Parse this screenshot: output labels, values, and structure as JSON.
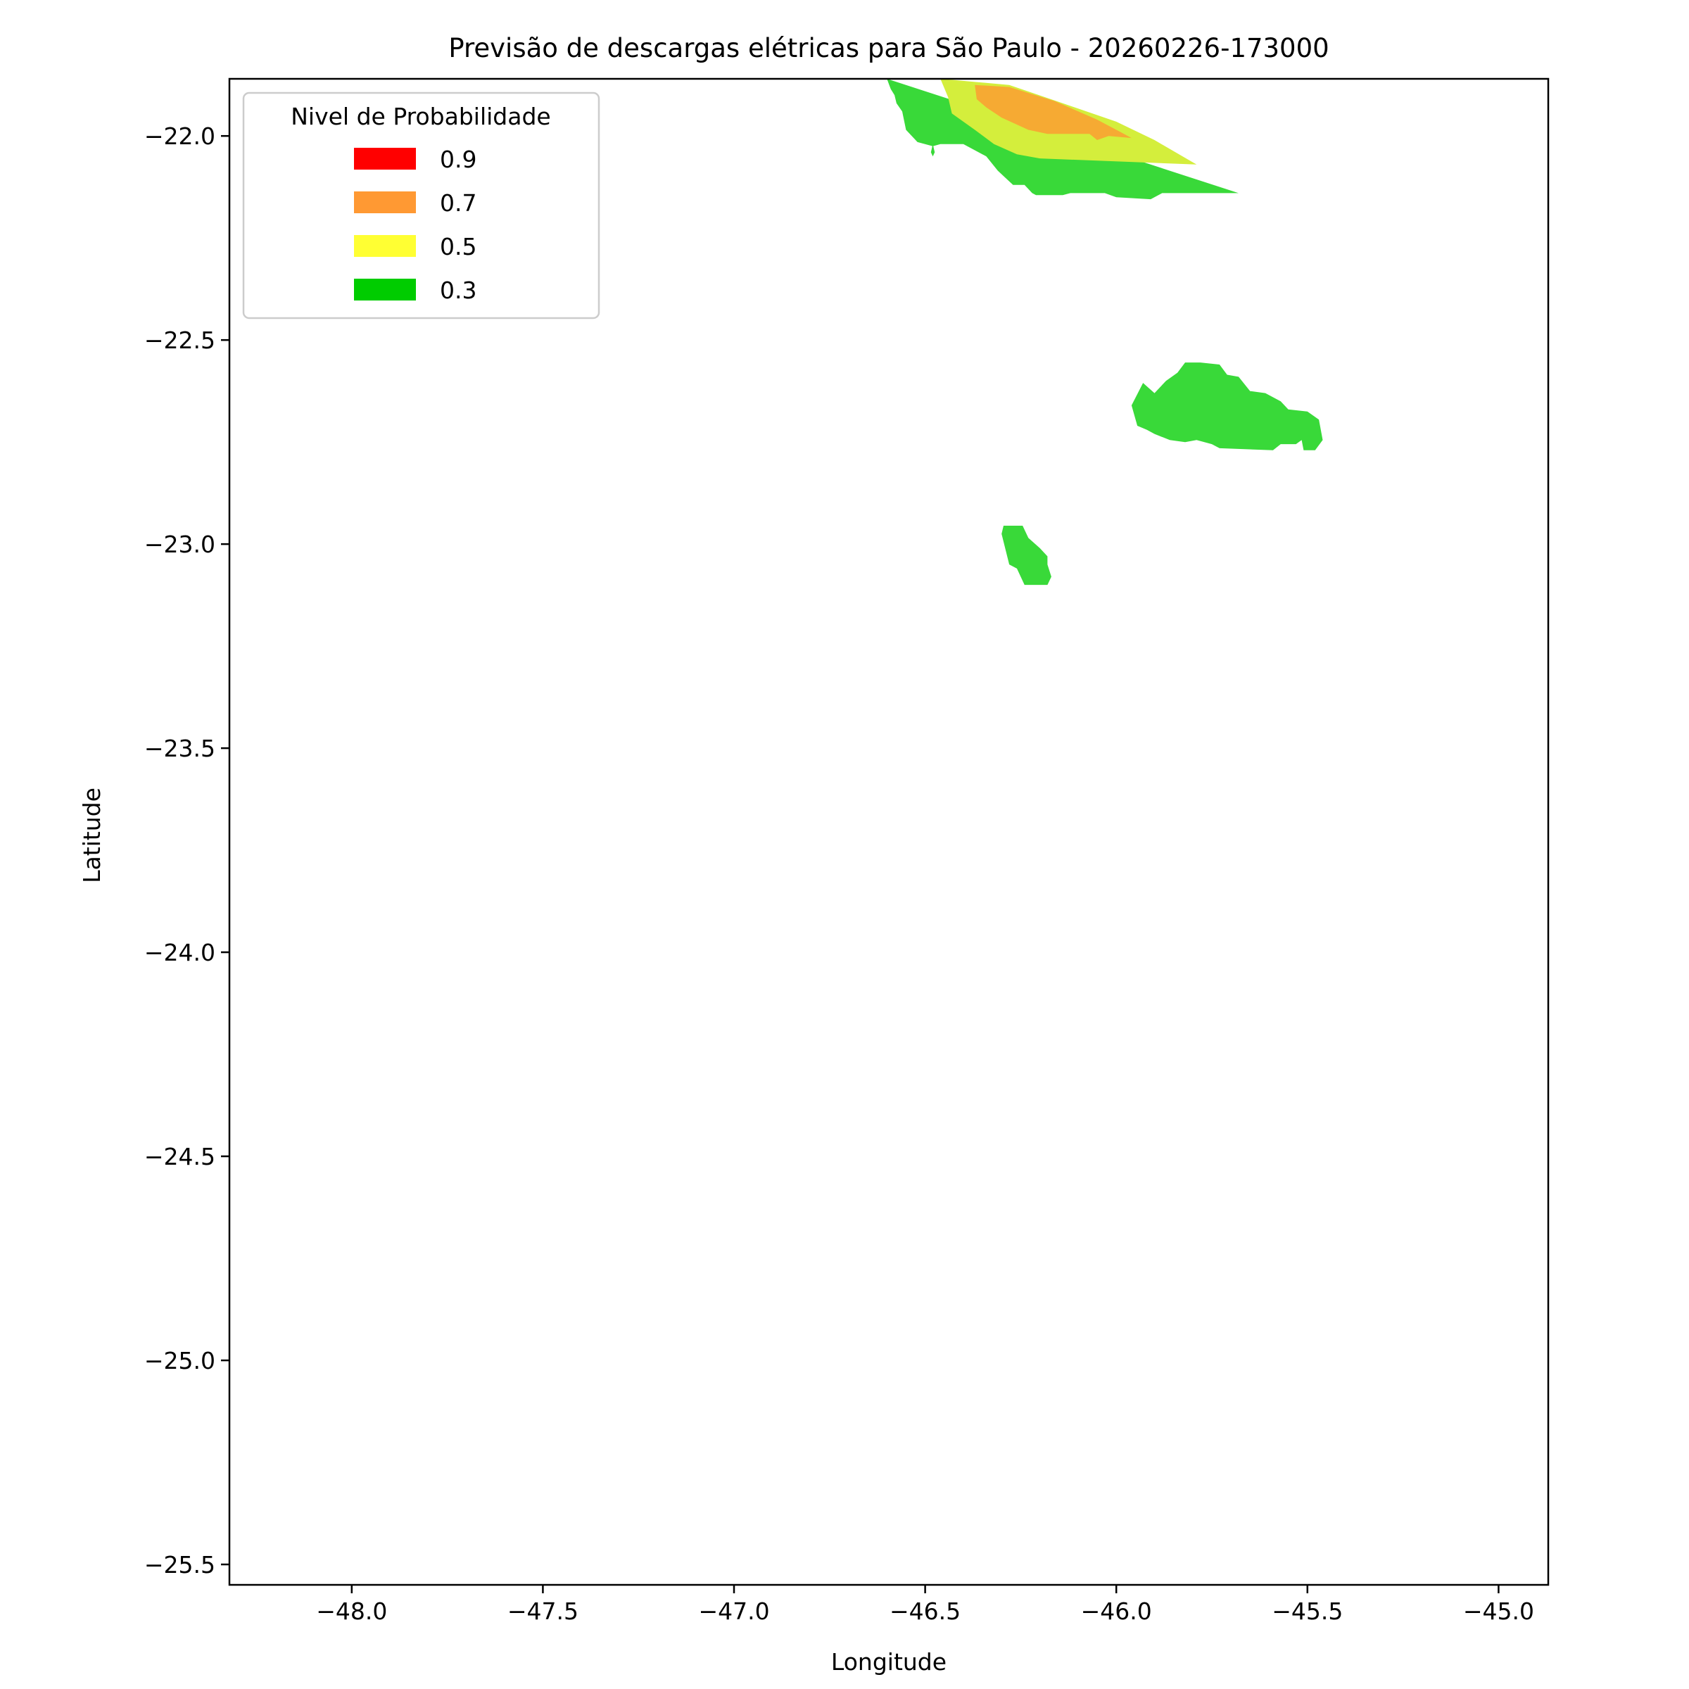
{
  "title": "Previsão de descargas elétricas para São Paulo - 20260226-173000",
  "chart_data": {
    "type": "map",
    "xlabel": "Longitude",
    "ylabel": "Latitude",
    "xlim": [
      -48.32,
      -44.87
    ],
    "ylim": [
      -25.55,
      -21.86
    ],
    "xticks": [
      -48.0,
      -47.5,
      -47.0,
      -46.5,
      -46.0,
      -45.5,
      -45.0
    ],
    "xtick_labels": [
      "−48.0",
      "−47.5",
      "−47.0",
      "−46.5",
      "−46.0",
      "−45.5",
      "−45.0"
    ],
    "yticks": [
      -22.0,
      -22.5,
      -23.0,
      -23.5,
      -24.0,
      -24.5,
      -25.0,
      -25.5
    ],
    "ytick_labels": [
      "−22.0",
      "−22.5",
      "−23.0",
      "−23.5",
      "−24.0",
      "−24.5",
      "−25.0",
      "−25.5"
    ],
    "legend": {
      "title": "Nivel de Probabilidade",
      "location": "upper-left",
      "entries": [
        {
          "label": "0.9",
          "color": "#ff0000"
        },
        {
          "label": "0.7",
          "color": "#ff9933"
        },
        {
          "label": "0.5",
          "color": "#ffff33"
        },
        {
          "label": "0.3",
          "color": "#00cc00"
        }
      ]
    },
    "regions": [
      {
        "level": "0.3",
        "color": "#39d939",
        "polygon": [
          [
            -46.6,
            -21.86
          ],
          [
            -45.68,
            -22.14
          ],
          [
            -45.88,
            -22.14
          ],
          [
            -45.91,
            -22.155
          ],
          [
            -46.0,
            -22.15
          ],
          [
            -46.03,
            -22.14
          ],
          [
            -46.12,
            -22.14
          ],
          [
            -46.14,
            -22.145
          ],
          [
            -46.21,
            -22.145
          ],
          [
            -46.22,
            -22.14
          ],
          [
            -46.24,
            -22.12
          ],
          [
            -46.27,
            -22.12
          ],
          [
            -46.31,
            -22.085
          ],
          [
            -46.34,
            -22.05
          ],
          [
            -46.37,
            -22.035
          ],
          [
            -46.4,
            -22.02
          ],
          [
            -46.46,
            -22.02
          ],
          [
            -46.48,
            -22.025
          ],
          [
            -46.52,
            -22.015
          ],
          [
            -46.55,
            -21.985
          ],
          [
            -46.56,
            -21.94
          ],
          [
            -46.575,
            -21.92
          ],
          [
            -46.58,
            -21.9
          ],
          [
            -46.59,
            -21.885
          ]
        ]
      },
      {
        "level": "0.3",
        "color": "#39d939",
        "polygon": [
          [
            -46.475,
            -22.04
          ],
          [
            -46.48,
            -22.02
          ],
          [
            -46.485,
            -22.04
          ],
          [
            -46.48,
            -22.05
          ]
        ]
      },
      {
        "level": "0.5",
        "color": "#d4ee3c",
        "polygon": [
          [
            -46.46,
            -21.86
          ],
          [
            -46.28,
            -21.875
          ],
          [
            -46.14,
            -21.92
          ],
          [
            -46.0,
            -21.965
          ],
          [
            -45.9,
            -22.01
          ],
          [
            -45.79,
            -22.07
          ],
          [
            -46.2,
            -22.055
          ],
          [
            -46.26,
            -22.045
          ],
          [
            -46.32,
            -22.02
          ],
          [
            -46.37,
            -21.985
          ],
          [
            -46.43,
            -21.945
          ],
          [
            -46.44,
            -21.905
          ]
        ]
      },
      {
        "level": "0.7",
        "color": "#f6aa33",
        "polygon": [
          [
            -46.37,
            -21.875
          ],
          [
            -46.28,
            -21.88
          ],
          [
            -46.16,
            -21.915
          ],
          [
            -46.05,
            -21.96
          ],
          [
            -45.98,
            -21.995
          ],
          [
            -45.96,
            -22.005
          ],
          [
            -46.02,
            -22.0
          ],
          [
            -46.05,
            -22.01
          ],
          [
            -46.07,
            -21.995
          ],
          [
            -46.18,
            -21.995
          ],
          [
            -46.23,
            -21.985
          ],
          [
            -46.3,
            -21.955
          ],
          [
            -46.34,
            -21.93
          ],
          [
            -46.365,
            -21.91
          ]
        ]
      },
      {
        "level": "0.3",
        "color": "#39d939",
        "polygon": [
          [
            -45.96,
            -22.66
          ],
          [
            -45.93,
            -22.605
          ],
          [
            -45.9,
            -22.63
          ],
          [
            -45.87,
            -22.6
          ],
          [
            -45.84,
            -22.58
          ],
          [
            -45.82,
            -22.555
          ],
          [
            -45.78,
            -22.555
          ],
          [
            -45.73,
            -22.56
          ],
          [
            -45.71,
            -22.585
          ],
          [
            -45.68,
            -22.59
          ],
          [
            -45.65,
            -22.625
          ],
          [
            -45.61,
            -22.63
          ],
          [
            -45.57,
            -22.65
          ],
          [
            -45.55,
            -22.67
          ],
          [
            -45.5,
            -22.675
          ],
          [
            -45.47,
            -22.695
          ],
          [
            -45.46,
            -22.745
          ],
          [
            -45.48,
            -22.77
          ],
          [
            -45.51,
            -22.77
          ],
          [
            -45.515,
            -22.745
          ],
          [
            -45.53,
            -22.755
          ],
          [
            -45.57,
            -22.755
          ],
          [
            -45.59,
            -22.77
          ],
          [
            -45.73,
            -22.765
          ],
          [
            -45.75,
            -22.755
          ],
          [
            -45.79,
            -22.745
          ],
          [
            -45.82,
            -22.75
          ],
          [
            -45.86,
            -22.745
          ],
          [
            -45.9,
            -22.73
          ],
          [
            -45.92,
            -22.72
          ],
          [
            -45.945,
            -22.71
          ]
        ]
      },
      {
        "level": "0.3",
        "color": "#39d939",
        "polygon": [
          [
            -46.295,
            -22.955
          ],
          [
            -46.3,
            -22.975
          ],
          [
            -46.28,
            -23.05
          ],
          [
            -46.26,
            -23.06
          ],
          [
            -46.24,
            -23.1
          ],
          [
            -46.18,
            -23.1
          ],
          [
            -46.17,
            -23.08
          ],
          [
            -46.18,
            -23.05
          ],
          [
            -46.18,
            -23.03
          ],
          [
            -46.2,
            -23.01
          ],
          [
            -46.23,
            -22.985
          ],
          [
            -46.245,
            -22.955
          ]
        ]
      }
    ]
  }
}
